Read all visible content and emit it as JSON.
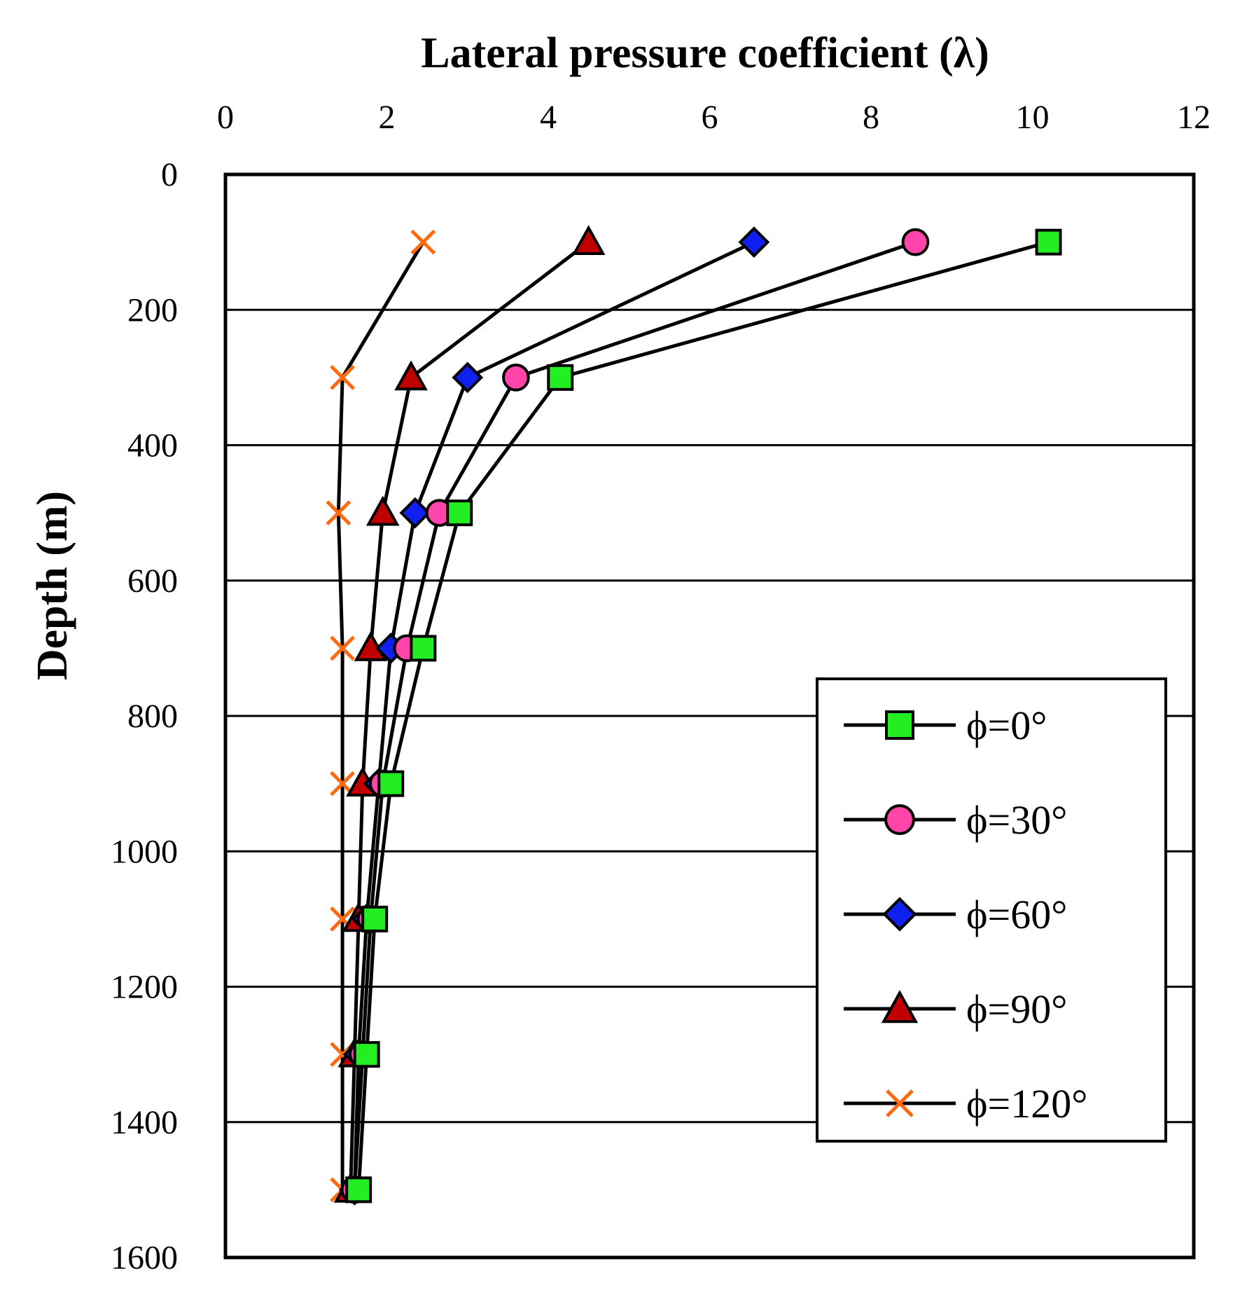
{
  "chart_data": {
    "type": "line",
    "title": "",
    "xlabel": "Lateral pressure coefficient (λ)",
    "ylabel": "Depth (m)",
    "xlim": [
      0,
      12
    ],
    "ylim": [
      0,
      1600
    ],
    "y_inverted": true,
    "x_axis_position": "top",
    "x_ticks": [
      "0",
      "2",
      "4",
      "6",
      "8",
      "10",
      "12"
    ],
    "y_ticks": [
      "0",
      "200",
      "400",
      "600",
      "800",
      "1000",
      "1200",
      "1400",
      "1600"
    ],
    "grid": "horizontal",
    "legend_position": "right",
    "depths": [
      100,
      300,
      500,
      700,
      900,
      1100,
      1300,
      1500
    ],
    "series": [
      {
        "name": "ϕ=0°",
        "marker": "square",
        "color": "#22ee22",
        "x": [
          10.2,
          4.15,
          2.9,
          2.45,
          2.05,
          1.85,
          1.75,
          1.65
        ]
      },
      {
        "name": "ϕ=30°",
        "marker": "circle",
        "color": "#ff44aa",
        "x": [
          8.55,
          3.6,
          2.65,
          2.25,
          1.95,
          1.8,
          1.7,
          1.6
        ]
      },
      {
        "name": "ϕ=60°",
        "marker": "diamond",
        "color": "#1020ee",
        "x": [
          6.55,
          3.0,
          2.35,
          2.05,
          1.9,
          1.75,
          1.65,
          1.6
        ]
      },
      {
        "name": "ϕ=90°",
        "marker": "triangle",
        "color": "#c00000",
        "x": [
          4.5,
          2.3,
          1.95,
          1.8,
          1.7,
          1.65,
          1.6,
          1.55
        ]
      },
      {
        "name": "ϕ=120°",
        "marker": "x",
        "color": "#ff6a10",
        "x": [
          2.45,
          1.45,
          1.4,
          1.45,
          1.45,
          1.45,
          1.45,
          1.45
        ]
      }
    ]
  }
}
